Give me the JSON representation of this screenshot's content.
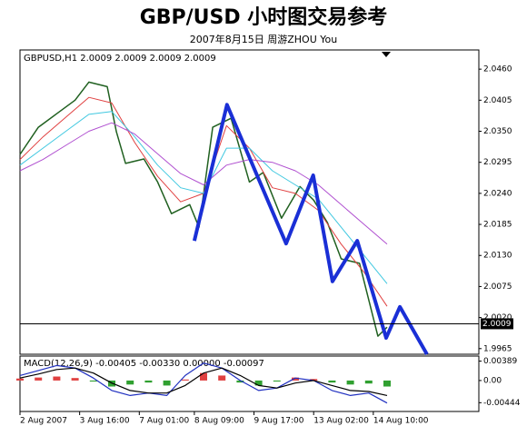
{
  "chart_data": [
    {
      "type": "line",
      "title": "GBP/USD 小时图交易参考",
      "subtitle": "2007年8月15日    周游ZHOU You",
      "header": "GBPUSD,H1  2.0009 2.0009 2.0009 2.0009",
      "xlim": [
        0,
        100
      ],
      "ylim": [
        1.9955,
        2.0494
      ],
      "yticks": [
        {
          "value": 2.046,
          "label": "2.0460"
        },
        2.0405,
        {
          "value": 2.035,
          "label": "2.0350"
        },
        2.0295,
        {
          "value": 2.024,
          "label": "2.0240"
        },
        2.0185,
        {
          "value": 2.013,
          "label": "2.0130"
        },
        2.0075,
        {
          "value": 2.002,
          "label": "2.0020"
        },
        1.9965
      ],
      "xticks": [
        {
          "value": 0,
          "label": "2 Aug 2007"
        },
        {
          "value": 13,
          "label": "3 Aug 16:00"
        },
        {
          "value": 26,
          "label": "7 Aug 01:00"
        },
        {
          "value": 38,
          "label": "8 Aug 09:00"
        },
        {
          "value": 51,
          "label": "9 Aug 17:00"
        },
        {
          "value": 64,
          "label": "13 Aug 02:00"
        },
        {
          "value": 77,
          "label": "14 Aug 10:00"
        }
      ],
      "last_price": 2.0009,
      "series": [
        {
          "color": "#206020",
          "width": 1.5,
          "x": [
            0,
            4,
            8,
            12,
            15,
            19,
            21,
            23,
            27,
            30,
            33,
            37,
            39,
            42,
            46,
            50,
            53,
            57,
            61,
            64,
            67,
            70,
            74,
            78,
            80
          ],
          "values": [
            2.0309,
            2.0357,
            2.0381,
            2.0405,
            2.0437,
            2.0429,
            2.0349,
            2.0293,
            2.0301,
            2.026,
            2.0204,
            2.022,
            2.018,
            2.0357,
            2.0373,
            2.026,
            2.0277,
            2.0196,
            2.0252,
            2.0228,
            2.0188,
            2.0124,
            2.0116,
            1.9987,
            2.0003
          ]
        },
        {
          "color": "#e04040",
          "width": 1,
          "x": [
            0,
            5,
            10,
            15,
            20,
            25,
            30,
            35,
            40,
            45,
            50,
            55,
            60,
            65,
            70,
            75,
            80
          ],
          "values": [
            2.03,
            2.034,
            2.0375,
            2.041,
            2.04,
            2.033,
            2.027,
            2.0225,
            2.024,
            2.036,
            2.032,
            2.025,
            2.024,
            2.021,
            2.015,
            2.01,
            2.004
          ]
        },
        {
          "color": "#40c8e0",
          "width": 1,
          "x": [
            0,
            5,
            10,
            15,
            20,
            25,
            30,
            35,
            40,
            45,
            50,
            55,
            60,
            65,
            70,
            75,
            80
          ],
          "values": [
            2.029,
            2.032,
            2.035,
            2.038,
            2.0385,
            2.034,
            2.029,
            2.025,
            2.024,
            2.032,
            2.032,
            2.028,
            2.0255,
            2.023,
            2.018,
            2.013,
            2.008
          ]
        },
        {
          "color": "#b050d0",
          "width": 1,
          "x": [
            0,
            5,
            10,
            15,
            20,
            25,
            30,
            35,
            40,
            45,
            50,
            55,
            60,
            65,
            70,
            75,
            80
          ],
          "values": [
            2.028,
            2.03,
            2.0325,
            2.035,
            2.0365,
            2.0345,
            2.031,
            2.0275,
            2.0255,
            2.029,
            2.03,
            2.0295,
            2.028,
            2.0255,
            2.022,
            2.0185,
            2.015
          ]
        },
        {
          "color": "#1a2fd6",
          "width": 4,
          "x": [
            38,
            45.1,
            58,
            63.9,
            68.1,
            73.5,
            79.8,
            82.8,
            88.7
          ],
          "values": [
            2.0156,
            2.0397,
            2.0151,
            2.0272,
            2.0084,
            2.0156,
            1.9984,
            2.0039,
            1.9955
          ]
        }
      ]
    },
    {
      "type": "bar",
      "label": "MACD(12,26,9) -0.00405 -0.00330 0.00000 -0.00097",
      "xlim": [
        0,
        100
      ],
      "ylim": [
        -0.0062,
        0.0049
      ],
      "yticks": [
        0.00389,
        {
          "value": 0,
          "label": "0.00"
        },
        -0.00444
      ],
      "color_up": "#e04040",
      "color_down": "#30a030",
      "x": [
        0,
        4,
        8,
        12,
        16,
        20,
        24,
        28,
        32,
        36,
        40,
        44,
        48,
        52,
        56,
        60,
        64,
        68,
        72,
        76,
        80
      ],
      "values": [
        0.0004,
        0.0006,
        0.0008,
        0.0005,
        -0.0002,
        -0.0012,
        -0.0008,
        -0.0004,
        -0.001,
        0.0002,
        0.0015,
        0.001,
        -0.0004,
        -0.001,
        -0.0002,
        0.0006,
        0.0003,
        -0.0004,
        -0.0008,
        -0.0006,
        -0.0012
      ],
      "series": [
        {
          "color": "#2030c0",
          "width": 1.2,
          "x": [
            0,
            4,
            8,
            12,
            16,
            20,
            24,
            28,
            32,
            36,
            40,
            44,
            48,
            52,
            56,
            60,
            64,
            68,
            72,
            76,
            80
          ],
          "values": [
            0.001,
            0.002,
            0.003,
            0.0025,
            0.0005,
            -0.002,
            -0.003,
            -0.0025,
            -0.003,
            0.001,
            0.0035,
            0.0025,
            0,
            -0.002,
            -0.0015,
            0.0005,
            0,
            -0.002,
            -0.003,
            -0.0025,
            -0.0045
          ]
        },
        {
          "color": "#000000",
          "width": 1.2,
          "x": [
            0,
            4,
            8,
            12,
            16,
            20,
            24,
            28,
            32,
            36,
            40,
            44,
            48,
            52,
            56,
            60,
            64,
            68,
            72,
            76,
            80
          ],
          "values": [
            0.0005,
            0.0013,
            0.0022,
            0.0025,
            0.0015,
            -0.0005,
            -0.002,
            -0.0025,
            -0.0025,
            -0.001,
            0.0015,
            0.0025,
            0.001,
            -0.001,
            -0.0015,
            -0.0005,
            0,
            -0.001,
            -0.002,
            -0.0022,
            -0.003
          ]
        }
      ]
    }
  ]
}
